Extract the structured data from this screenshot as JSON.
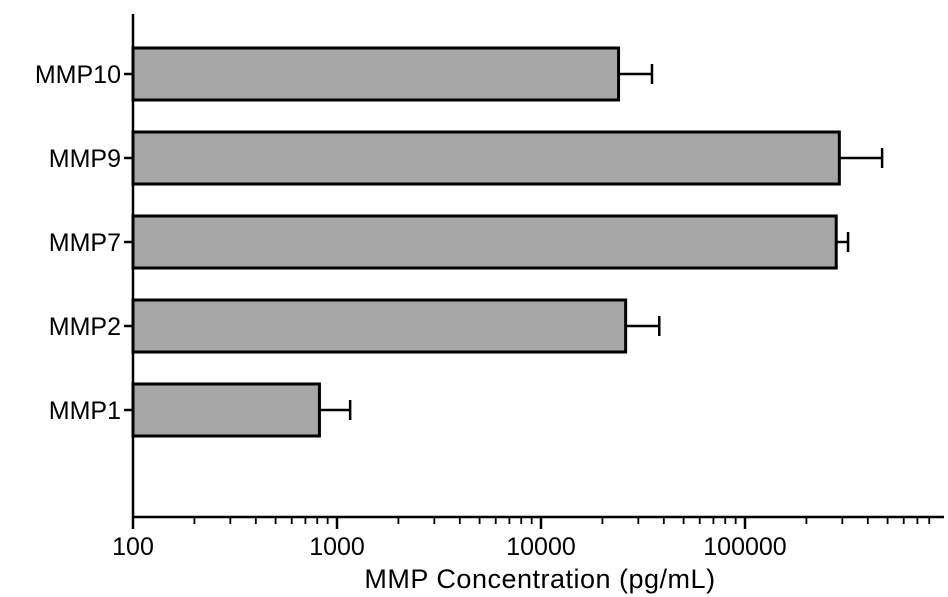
{
  "chart_data": {
    "type": "bar",
    "orientation": "horizontal",
    "title": "",
    "xlabel": "MMP Concentration (pg/mL)",
    "ylabel": "",
    "xscale": "log",
    "xlim": [
      100,
      800000
    ],
    "x_tick_labels": [
      "100",
      "1000",
      "10000",
      "100000"
    ],
    "x_ticks": [
      100,
      1000,
      10000,
      100000
    ],
    "grid": false,
    "legend": "none",
    "bar_color": "#a6a6a6",
    "categories": [
      "MMP10",
      "MMP9",
      "MMP7",
      "MMP2",
      "MMP1"
    ],
    "values": [
      24000,
      290000,
      280000,
      26000,
      820
    ],
    "error_plus": [
      11000,
      180000,
      40000,
      12000,
      340
    ]
  }
}
